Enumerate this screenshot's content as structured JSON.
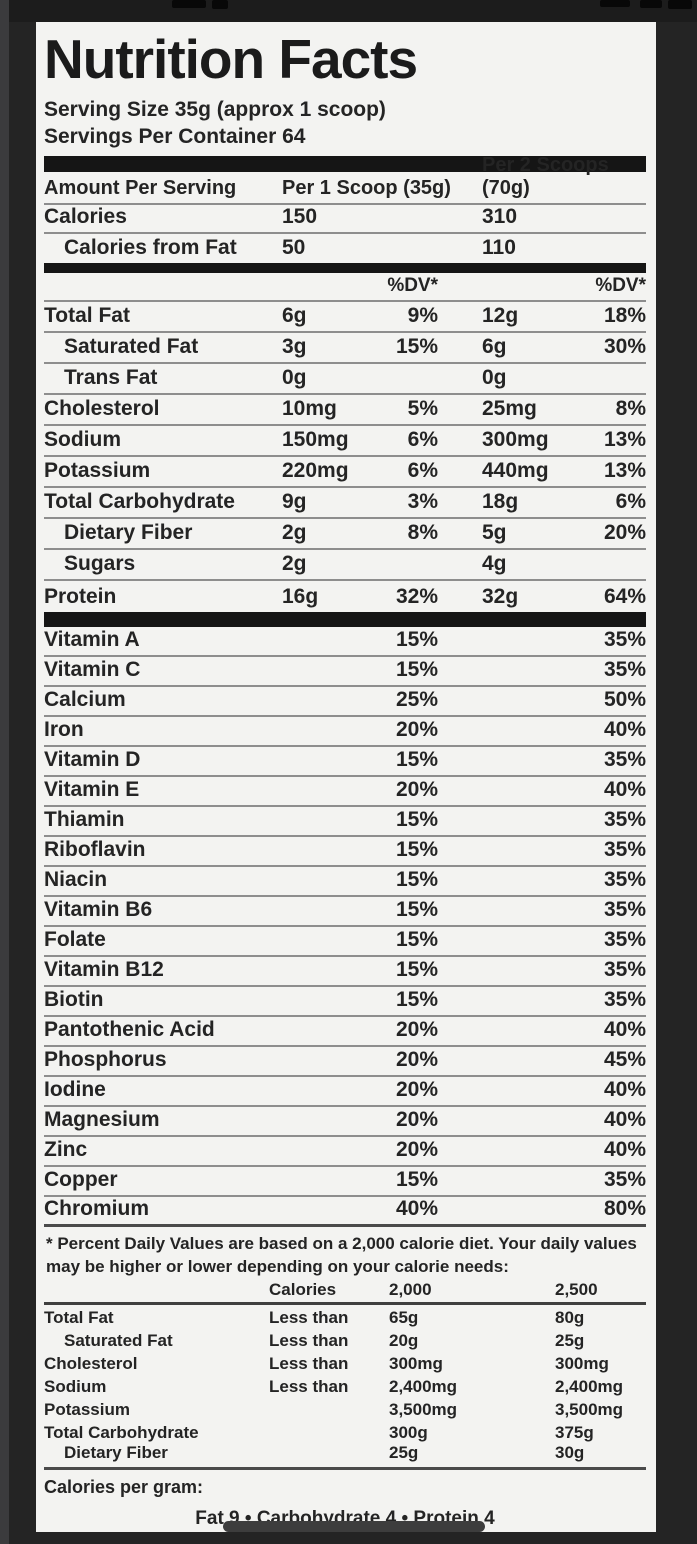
{
  "colors": {
    "background": "#242424",
    "label_background": "#f3f3f1",
    "ink": "#242424",
    "separator": "#8d8d8d",
    "thick_bar": "#151515"
  },
  "label": {
    "title": "Nutrition Facts",
    "serving_size": "Serving Size 35g (approx 1 scoop)",
    "servings_per_container": "Servings Per Container 64",
    "amount_header": {
      "col1": "Amount Per Serving",
      "col2": "Per 1 Scoop (35g)",
      "col3": "Per 2 Scoops (70g)"
    },
    "calories_rows": [
      {
        "label": "Calories",
        "v1": "150",
        "v2": "310"
      },
      {
        "label": "Calories from Fat",
        "v1": "50",
        "v2": "110"
      }
    ],
    "dv_header": "%DV*",
    "nutrients": [
      {
        "label": "Total Fat",
        "amt1": "6g",
        "dv1": "9%",
        "amt2": "12g",
        "dv2": "18%"
      },
      {
        "label": "Saturated Fat",
        "amt1": "3g",
        "dv1": "15%",
        "amt2": "6g",
        "dv2": "30%"
      },
      {
        "label": "Trans Fat",
        "amt1": "0g",
        "dv1": "",
        "amt2": "0g",
        "dv2": ""
      },
      {
        "label": "Cholesterol",
        "amt1": "10mg",
        "dv1": "5%",
        "amt2": "25mg",
        "dv2": "8%"
      },
      {
        "label": "Sodium",
        "amt1": "150mg",
        "dv1": "6%",
        "amt2": "300mg",
        "dv2": "13%"
      },
      {
        "label": "Potassium",
        "amt1": "220mg",
        "dv1": "6%",
        "amt2": "440mg",
        "dv2": "13%"
      },
      {
        "label": "Total Carbohydrate",
        "amt1": "9g",
        "dv1": "3%",
        "amt2": "18g",
        "dv2": "6%"
      },
      {
        "label": "Dietary Fiber",
        "amt1": "2g",
        "dv1": "8%",
        "amt2": "5g",
        "dv2": "20%"
      },
      {
        "label": "Sugars",
        "amt1": "2g",
        "dv1": "",
        "amt2": "4g",
        "dv2": ""
      },
      {
        "label": "Protein",
        "amt1": "16g",
        "dv1": "32%",
        "amt2": "32g",
        "dv2": "64%"
      }
    ],
    "micronutrients": [
      {
        "name": "Vitamin A",
        "dv1": "15%",
        "dv2": "35%"
      },
      {
        "name": "Vitamin C",
        "dv1": "15%",
        "dv2": "35%"
      },
      {
        "name": "Calcium",
        "dv1": "25%",
        "dv2": "50%"
      },
      {
        "name": "Iron",
        "dv1": "20%",
        "dv2": "40%"
      },
      {
        "name": "Vitamin D",
        "dv1": "15%",
        "dv2": "35%"
      },
      {
        "name": "Vitamin E",
        "dv1": "20%",
        "dv2": "40%"
      },
      {
        "name": "Thiamin",
        "dv1": "15%",
        "dv2": "35%"
      },
      {
        "name": "Riboflavin",
        "dv1": "15%",
        "dv2": "35%"
      },
      {
        "name": "Niacin",
        "dv1": "15%",
        "dv2": "35%"
      },
      {
        "name": "Vitamin B6",
        "dv1": "15%",
        "dv2": "35%"
      },
      {
        "name": "Folate",
        "dv1": "15%",
        "dv2": "35%"
      },
      {
        "name": "Vitamin B12",
        "dv1": "15%",
        "dv2": "35%"
      },
      {
        "name": "Biotin",
        "dv1": "15%",
        "dv2": "35%"
      },
      {
        "name": "Pantothenic Acid",
        "dv1": "20%",
        "dv2": "40%"
      },
      {
        "name": "Phosphorus",
        "dv1": "20%",
        "dv2": "45%"
      },
      {
        "name": "Iodine",
        "dv1": "20%",
        "dv2": "40%"
      },
      {
        "name": "Magnesium",
        "dv1": "20%",
        "dv2": "40%"
      },
      {
        "name": "Zinc",
        "dv1": "20%",
        "dv2": "40%"
      },
      {
        "name": "Copper",
        "dv1": "15%",
        "dv2": "35%"
      },
      {
        "name": "Chromium",
        "dv1": "40%",
        "dv2": "80%"
      }
    ],
    "footnote": "* Percent Daily Values are based on a 2,000 calorie diet. Your daily values may be higher or lower depending on your calorie needs:",
    "dv_table": {
      "header": {
        "col2": "Calories",
        "col3": "2,000",
        "col4": "2,500"
      },
      "rows": [
        {
          "label": "Total Fat",
          "rel": "Less than",
          "v1": "65g",
          "v2": "80g"
        },
        {
          "label": "Saturated Fat",
          "rel": "Less than",
          "v1": "20g",
          "v2": "25g"
        },
        {
          "label": "Cholesterol",
          "rel": "Less than",
          "v1": "300mg",
          "v2": "300mg"
        },
        {
          "label": "Sodium",
          "rel": "Less than",
          "v1": "2,400mg",
          "v2": "2,400mg"
        },
        {
          "label": "Potassium",
          "rel": "",
          "v1": "3,500mg",
          "v2": "3,500mg"
        },
        {
          "label": "Total Carbohydrate",
          "rel": "",
          "v1": "300g",
          "v2": "375g"
        },
        {
          "label": "Dietary Fiber",
          "rel": "",
          "v1": "25g",
          "v2": "30g"
        }
      ]
    },
    "calories_per_gram_label": "Calories per gram:",
    "calories_per_gram_values": "Fat 9 • Carbohydrate 4 • Protein   4"
  }
}
